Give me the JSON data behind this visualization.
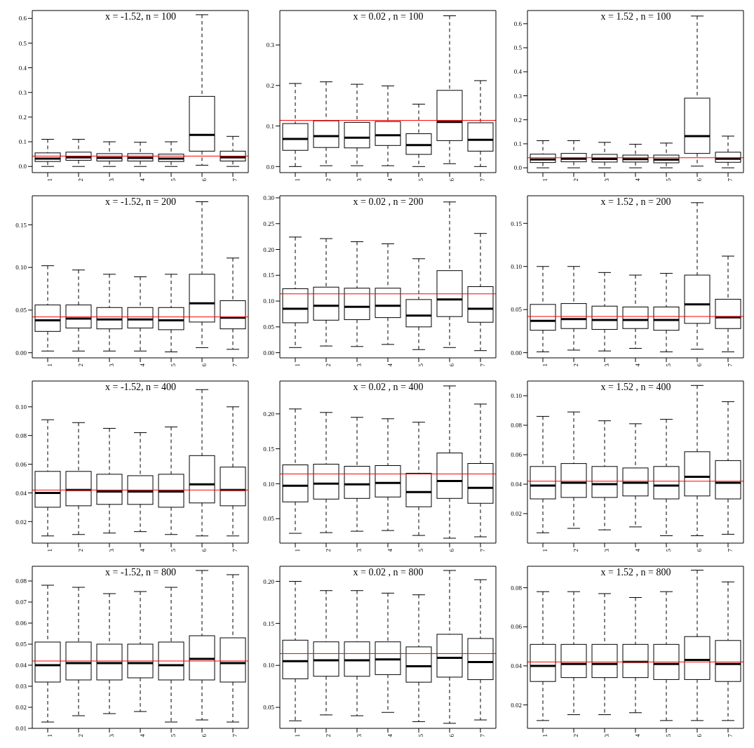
{
  "chart_data": [
    {
      "type": "box",
      "title": "x = -1.52, n = 100",
      "categories": [
        "1",
        "2",
        "3",
        "4",
        "5",
        "6",
        "7"
      ],
      "ylim": [
        -0.025,
        0.632
      ],
      "yticks": [
        {
          "value": 0,
          "label": "0.0"
        },
        {
          "value": 0.1,
          "label": "0.1"
        },
        {
          "value": 0.2,
          "label": "0.2"
        },
        {
          "value": 0.3,
          "label": "0.3"
        },
        {
          "value": 0.4,
          "label": "0.4"
        },
        {
          "value": 0.5,
          "label": "0.5"
        },
        {
          "value": 0.6,
          "label": "0.6"
        }
      ],
      "ref_lines": [
        {
          "axis": "y",
          "value": 0.042,
          "color": "#ff0000"
        }
      ],
      "boxes": [
        {
          "low": 0.0,
          "q1": 0.02,
          "median": 0.032,
          "q3": 0.055,
          "high": 0.11
        },
        {
          "low": 0.0,
          "q1": 0.025,
          "median": 0.037,
          "q3": 0.058,
          "high": 0.11
        },
        {
          "low": 0.0,
          "q1": 0.022,
          "median": 0.035,
          "q3": 0.052,
          "high": 0.1
        },
        {
          "low": 0.0,
          "q1": 0.022,
          "median": 0.035,
          "q3": 0.052,
          "high": 0.098
        },
        {
          "low": 0.0,
          "q1": 0.02,
          "median": 0.032,
          "q3": 0.05,
          "high": 0.1
        },
        {
          "low": 0.005,
          "q1": 0.062,
          "median": 0.128,
          "q3": 0.284,
          "high": 0.615
        },
        {
          "low": 0.0,
          "q1": 0.022,
          "median": 0.037,
          "q3": 0.062,
          "high": 0.122
        }
      ]
    },
    {
      "type": "box",
      "title": "x = 0.02 , n = 100",
      "categories": [
        "1",
        "2",
        "3",
        "4",
        "5",
        "6",
        "7"
      ],
      "ylim": [
        -0.015,
        0.385
      ],
      "yticks": [
        {
          "value": 0,
          "label": "0.0"
        },
        {
          "value": 0.1,
          "label": "0.1"
        },
        {
          "value": 0.2,
          "label": "0.2"
        },
        {
          "value": 0.3,
          "label": "0.3"
        }
      ],
      "ref_lines": [
        {
          "axis": "y",
          "value": 0.114,
          "color": "#ff0000"
        }
      ],
      "boxes": [
        {
          "low": 0.0,
          "q1": 0.04,
          "median": 0.068,
          "q3": 0.106,
          "high": 0.205
        },
        {
          "low": 0.002,
          "q1": 0.047,
          "median": 0.075,
          "q3": 0.113,
          "high": 0.209
        },
        {
          "low": 0.002,
          "q1": 0.046,
          "median": 0.071,
          "q3": 0.109,
          "high": 0.203
        },
        {
          "low": 0.002,
          "q1": 0.052,
          "median": 0.077,
          "q3": 0.111,
          "high": 0.199
        },
        {
          "low": 0.0,
          "q1": 0.03,
          "median": 0.053,
          "q3": 0.081,
          "high": 0.154
        },
        {
          "low": 0.007,
          "q1": 0.064,
          "median": 0.11,
          "q3": 0.188,
          "high": 0.372
        },
        {
          "low": 0.0,
          "q1": 0.038,
          "median": 0.066,
          "q3": 0.108,
          "high": 0.212
        }
      ]
    },
    {
      "type": "box",
      "title": "x = 1.52 , n = 100",
      "categories": [
        "1",
        "2",
        "3",
        "4",
        "5",
        "6",
        "7"
      ],
      "ylim": [
        -0.02,
        0.655
      ],
      "yticks": [
        {
          "value": 0,
          "label": "0.0"
        },
        {
          "value": 0.1,
          "label": "0.1"
        },
        {
          "value": 0.2,
          "label": "0.2"
        },
        {
          "value": 0.3,
          "label": "0.3"
        },
        {
          "value": 0.4,
          "label": "0.4"
        },
        {
          "value": 0.5,
          "label": "0.5"
        },
        {
          "value": 0.6,
          "label": "0.6"
        }
      ],
      "ref_lines": [
        {
          "axis": "y",
          "value": 0.042,
          "color": "#ff0000"
        }
      ],
      "boxes": [
        {
          "low": 0.0,
          "q1": 0.022,
          "median": 0.035,
          "q3": 0.057,
          "high": 0.113
        },
        {
          "low": 0.0,
          "q1": 0.025,
          "median": 0.038,
          "q3": 0.06,
          "high": 0.113
        },
        {
          "low": 0.0,
          "q1": 0.024,
          "median": 0.037,
          "q3": 0.056,
          "high": 0.106
        },
        {
          "low": 0.0,
          "q1": 0.024,
          "median": 0.036,
          "q3": 0.053,
          "high": 0.098
        },
        {
          "low": 0.0,
          "q1": 0.021,
          "median": 0.034,
          "q3": 0.053,
          "high": 0.103
        },
        {
          "low": 0.007,
          "q1": 0.06,
          "median": 0.132,
          "q3": 0.29,
          "high": 0.632
        },
        {
          "low": 0.0,
          "q1": 0.023,
          "median": 0.038,
          "q3": 0.065,
          "high": 0.132
        }
      ]
    },
    {
      "type": "box",
      "title": "x = -1.52, n = 200",
      "categories": [
        "1",
        "2",
        "3",
        "4",
        "5",
        "6",
        "7"
      ],
      "ylim": [
        -0.006,
        0.184
      ],
      "yticks": [
        {
          "value": 0,
          "label": "0.00"
        },
        {
          "value": 0.05,
          "label": "0.05"
        },
        {
          "value": 0.1,
          "label": "0.10"
        },
        {
          "value": 0.15,
          "label": "0.15"
        }
      ],
      "ref_lines": [
        {
          "axis": "y",
          "value": 0.042,
          "color": "#ff0000"
        }
      ],
      "boxes": [
        {
          "low": 0.002,
          "q1": 0.025,
          "median": 0.038,
          "q3": 0.056,
          "high": 0.102
        },
        {
          "low": 0.002,
          "q1": 0.029,
          "median": 0.04,
          "q3": 0.056,
          "high": 0.097
        },
        {
          "low": 0.002,
          "q1": 0.028,
          "median": 0.039,
          "q3": 0.053,
          "high": 0.092
        },
        {
          "low": 0.002,
          "q1": 0.029,
          "median": 0.039,
          "q3": 0.053,
          "high": 0.089
        },
        {
          "low": 0.001,
          "q1": 0.027,
          "median": 0.038,
          "q3": 0.053,
          "high": 0.092
        },
        {
          "low": 0.006,
          "q1": 0.036,
          "median": 0.058,
          "q3": 0.092,
          "high": 0.177
        },
        {
          "low": 0.004,
          "q1": 0.028,
          "median": 0.041,
          "q3": 0.061,
          "high": 0.111
        }
      ]
    },
    {
      "type": "box",
      "title": "x = 0.02 , n = 200",
      "categories": [
        "1",
        "2",
        "3",
        "4",
        "5",
        "6",
        "7"
      ],
      "ylim": [
        -0.01,
        0.304
      ],
      "yticks": [
        {
          "value": 0,
          "label": "0.00"
        },
        {
          "value": 0.05,
          "label": "0.05"
        },
        {
          "value": 0.1,
          "label": "0.10"
        },
        {
          "value": 0.15,
          "label": "0.15"
        },
        {
          "value": 0.2,
          "label": "0.20"
        },
        {
          "value": 0.25,
          "label": "0.25"
        },
        {
          "value": 0.3,
          "label": "0.30"
        }
      ],
      "ref_lines": [
        {
          "axis": "y",
          "value": 0.114,
          "color": "#ff0000"
        }
      ],
      "boxes": [
        {
          "low": 0.01,
          "q1": 0.058,
          "median": 0.085,
          "q3": 0.124,
          "high": 0.224
        },
        {
          "low": 0.013,
          "q1": 0.063,
          "median": 0.091,
          "q3": 0.127,
          "high": 0.221
        },
        {
          "low": 0.012,
          "q1": 0.064,
          "median": 0.089,
          "q3": 0.125,
          "high": 0.215
        },
        {
          "low": 0.016,
          "q1": 0.068,
          "median": 0.091,
          "q3": 0.125,
          "high": 0.211
        },
        {
          "low": 0.006,
          "q1": 0.05,
          "median": 0.072,
          "q3": 0.103,
          "high": 0.182
        },
        {
          "low": 0.01,
          "q1": 0.07,
          "median": 0.103,
          "q3": 0.159,
          "high": 0.292
        },
        {
          "low": 0.004,
          "q1": 0.059,
          "median": 0.085,
          "q3": 0.128,
          "high": 0.231
        }
      ]
    },
    {
      "type": "box",
      "title": "x = 1.52 , n = 200",
      "categories": [
        "1",
        "2",
        "3",
        "4",
        "5",
        "6",
        "7"
      ],
      "ylim": [
        -0.006,
        0.182
      ],
      "yticks": [
        {
          "value": 0,
          "label": "0.00"
        },
        {
          "value": 0.05,
          "label": "0.05"
        },
        {
          "value": 0.1,
          "label": "0.10"
        },
        {
          "value": 0.15,
          "label": "0.15"
        }
      ],
      "ref_lines": [
        {
          "axis": "y",
          "value": 0.042,
          "color": "#ff0000"
        }
      ],
      "boxes": [
        {
          "low": 0.001,
          "q1": 0.026,
          "median": 0.037,
          "q3": 0.056,
          "high": 0.1
        },
        {
          "low": 0.003,
          "q1": 0.028,
          "median": 0.039,
          "q3": 0.057,
          "high": 0.1
        },
        {
          "low": 0.002,
          "q1": 0.027,
          "median": 0.038,
          "q3": 0.054,
          "high": 0.093
        },
        {
          "low": 0.005,
          "q1": 0.028,
          "median": 0.038,
          "q3": 0.053,
          "high": 0.09
        },
        {
          "low": 0.001,
          "q1": 0.026,
          "median": 0.038,
          "q3": 0.053,
          "high": 0.092
        },
        {
          "low": 0.004,
          "q1": 0.034,
          "median": 0.056,
          "q3": 0.09,
          "high": 0.174
        },
        {
          "low": 0.001,
          "q1": 0.028,
          "median": 0.041,
          "q3": 0.062,
          "high": 0.112
        }
      ]
    },
    {
      "type": "box",
      "title": "x = -1.52, n = 400",
      "categories": [
        "1",
        "2",
        "3",
        "4",
        "5",
        "6",
        "7"
      ],
      "ylim": [
        0.005,
        0.118
      ],
      "yticks": [
        {
          "value": 0.02,
          "label": "0.02"
        },
        {
          "value": 0.04,
          "label": "0.04"
        },
        {
          "value": 0.06,
          "label": "0.06"
        },
        {
          "value": 0.08,
          "label": "0.08"
        },
        {
          "value": 0.1,
          "label": "0.10"
        }
      ],
      "ref_lines": [
        {
          "axis": "y",
          "value": 0.042,
          "color": "#ff0000"
        }
      ],
      "boxes": [
        {
          "low": 0.01,
          "q1": 0.03,
          "median": 0.04,
          "q3": 0.055,
          "high": 0.091
        },
        {
          "low": 0.011,
          "q1": 0.031,
          "median": 0.042,
          "q3": 0.055,
          "high": 0.089
        },
        {
          "low": 0.012,
          "q1": 0.032,
          "median": 0.041,
          "q3": 0.053,
          "high": 0.085
        },
        {
          "low": 0.013,
          "q1": 0.032,
          "median": 0.041,
          "q3": 0.052,
          "high": 0.082
        },
        {
          "low": 0.011,
          "q1": 0.03,
          "median": 0.041,
          "q3": 0.053,
          "high": 0.086
        },
        {
          "low": 0.01,
          "q1": 0.033,
          "median": 0.046,
          "q3": 0.066,
          "high": 0.112
        },
        {
          "low": 0.01,
          "q1": 0.031,
          "median": 0.042,
          "q3": 0.058,
          "high": 0.1
        }
      ]
    },
    {
      "type": "box",
      "title": "x = 0.02 , n = 400",
      "categories": [
        "1",
        "2",
        "3",
        "4",
        "5",
        "6",
        "7"
      ],
      "ylim": [
        0.015,
        0.247
      ],
      "yticks": [
        {
          "value": 0.05,
          "label": "0.05"
        },
        {
          "value": 0.1,
          "label": "0.10"
        },
        {
          "value": 0.15,
          "label": "0.15"
        },
        {
          "value": 0.2,
          "label": "0.20"
        }
      ],
      "ref_lines": [
        {
          "axis": "y",
          "value": 0.114,
          "color": "#ff0000"
        }
      ],
      "boxes": [
        {
          "low": 0.029,
          "q1": 0.074,
          "median": 0.097,
          "q3": 0.127,
          "high": 0.207
        },
        {
          "low": 0.03,
          "q1": 0.078,
          "median": 0.1,
          "q3": 0.128,
          "high": 0.202
        },
        {
          "low": 0.032,
          "q1": 0.079,
          "median": 0.099,
          "q3": 0.125,
          "high": 0.195
        },
        {
          "low": 0.033,
          "q1": 0.081,
          "median": 0.101,
          "q3": 0.126,
          "high": 0.193
        },
        {
          "low": 0.026,
          "q1": 0.067,
          "median": 0.088,
          "q3": 0.115,
          "high": 0.188
        },
        {
          "low": 0.022,
          "q1": 0.079,
          "median": 0.104,
          "q3": 0.144,
          "high": 0.24
        },
        {
          "low": 0.024,
          "q1": 0.072,
          "median": 0.094,
          "q3": 0.129,
          "high": 0.214
        }
      ]
    },
    {
      "type": "box",
      "title": "x = 1.52 , n = 400",
      "categories": [
        "1",
        "2",
        "3",
        "4",
        "5",
        "6",
        "7"
      ],
      "ylim": [
        0.0,
        0.11
      ],
      "yticks": [
        {
          "value": 0.02,
          "label": "0.02"
        },
        {
          "value": 0.04,
          "label": "0.04"
        },
        {
          "value": 0.06,
          "label": "0.06"
        },
        {
          "value": 0.08,
          "label": "0.08"
        },
        {
          "value": 0.1,
          "label": "0.10"
        }
      ],
      "ref_lines": [
        {
          "axis": "y",
          "value": 0.042,
          "color": "#ff0000"
        }
      ],
      "boxes": [
        {
          "low": 0.007,
          "q1": 0.03,
          "median": 0.039,
          "q3": 0.052,
          "high": 0.086
        },
        {
          "low": 0.01,
          "q1": 0.031,
          "median": 0.041,
          "q3": 0.054,
          "high": 0.089
        },
        {
          "low": 0.009,
          "q1": 0.031,
          "median": 0.04,
          "q3": 0.052,
          "high": 0.083
        },
        {
          "low": 0.011,
          "q1": 0.032,
          "median": 0.041,
          "q3": 0.051,
          "high": 0.081
        },
        {
          "low": 0.005,
          "q1": 0.03,
          "median": 0.039,
          "q3": 0.052,
          "high": 0.084
        },
        {
          "low": 0.005,
          "q1": 0.032,
          "median": 0.045,
          "q3": 0.062,
          "high": 0.107
        },
        {
          "low": 0.006,
          "q1": 0.03,
          "median": 0.041,
          "q3": 0.056,
          "high": 0.096
        }
      ]
    },
    {
      "type": "box",
      "title": "x = -1.52, n = 800",
      "categories": [
        "1",
        "2",
        "3",
        "4",
        "5",
        "6",
        "7"
      ],
      "ylim": [
        0.01,
        0.087
      ],
      "yticks": [
        {
          "value": 0.01,
          "label": "0.01"
        },
        {
          "value": 0.02,
          "label": "0.02"
        },
        {
          "value": 0.03,
          "label": "0.03"
        },
        {
          "value": 0.04,
          "label": "0.04"
        },
        {
          "value": 0.05,
          "label": "0.05"
        },
        {
          "value": 0.06,
          "label": "0.06"
        },
        {
          "value": 0.07,
          "label": "0.07"
        },
        {
          "value": 0.08,
          "label": "0.08"
        }
      ],
      "ref_lines": [
        {
          "axis": "y",
          "value": 0.042,
          "color": "#ff0000"
        }
      ],
      "boxes": [
        {
          "low": 0.013,
          "q1": 0.032,
          "median": 0.04,
          "q3": 0.051,
          "high": 0.078
        },
        {
          "low": 0.016,
          "q1": 0.033,
          "median": 0.041,
          "q3": 0.051,
          "high": 0.077
        },
        {
          "low": 0.017,
          "q1": 0.033,
          "median": 0.041,
          "q3": 0.05,
          "high": 0.074
        },
        {
          "low": 0.018,
          "q1": 0.034,
          "median": 0.041,
          "q3": 0.05,
          "high": 0.075
        },
        {
          "low": 0.013,
          "q1": 0.033,
          "median": 0.04,
          "q3": 0.051,
          "high": 0.077
        },
        {
          "low": 0.014,
          "q1": 0.033,
          "median": 0.043,
          "q3": 0.054,
          "high": 0.085
        },
        {
          "low": 0.013,
          "q1": 0.032,
          "median": 0.041,
          "q3": 0.053,
          "high": 0.083
        }
      ]
    },
    {
      "type": "box",
      "title": "x = 0.02 , n = 800",
      "categories": [
        "1",
        "2",
        "3",
        "4",
        "5",
        "6",
        "7"
      ],
      "ylim": [
        0.025,
        0.218
      ],
      "yticks": [
        {
          "value": 0.05,
          "label": "0.05"
        },
        {
          "value": 0.1,
          "label": "0.10"
        },
        {
          "value": 0.15,
          "label": "0.15"
        },
        {
          "value": 0.2,
          "label": "0.20"
        }
      ],
      "ref_lines": [
        {
          "axis": "y",
          "value": 0.114,
          "color": "#ff0000"
        }
      ],
      "boxes": [
        {
          "low": 0.034,
          "q1": 0.084,
          "median": 0.105,
          "q3": 0.13,
          "high": 0.2
        },
        {
          "low": 0.041,
          "q1": 0.087,
          "median": 0.106,
          "q3": 0.128,
          "high": 0.189
        },
        {
          "low": 0.04,
          "q1": 0.087,
          "median": 0.106,
          "q3": 0.128,
          "high": 0.189
        },
        {
          "low": 0.044,
          "q1": 0.089,
          "median": 0.107,
          "q3": 0.128,
          "high": 0.186
        },
        {
          "low": 0.033,
          "q1": 0.08,
          "median": 0.099,
          "q3": 0.122,
          "high": 0.184
        },
        {
          "low": 0.031,
          "q1": 0.086,
          "median": 0.109,
          "q3": 0.137,
          "high": 0.213
        },
        {
          "low": 0.035,
          "q1": 0.083,
          "median": 0.104,
          "q3": 0.132,
          "high": 0.202
        }
      ]
    },
    {
      "type": "box",
      "title": "x = 1.52 , n = 800",
      "categories": [
        "1",
        "2",
        "3",
        "4",
        "5",
        "6",
        "7"
      ],
      "ylim": [
        0.008,
        0.091
      ],
      "yticks": [
        {
          "value": 0.02,
          "label": "0.02"
        },
        {
          "value": 0.04,
          "label": "0.04"
        },
        {
          "value": 0.06,
          "label": "0.06"
        },
        {
          "value": 0.08,
          "label": "0.08"
        }
      ],
      "ref_lines": [
        {
          "axis": "y",
          "value": 0.042,
          "color": "#ff0000"
        }
      ],
      "boxes": [
        {
          "low": 0.012,
          "q1": 0.032,
          "median": 0.04,
          "q3": 0.051,
          "high": 0.078
        },
        {
          "low": 0.015,
          "q1": 0.034,
          "median": 0.041,
          "q3": 0.051,
          "high": 0.078
        },
        {
          "low": 0.015,
          "q1": 0.034,
          "median": 0.041,
          "q3": 0.051,
          "high": 0.077
        },
        {
          "low": 0.016,
          "q1": 0.034,
          "median": 0.042,
          "q3": 0.051,
          "high": 0.075
        },
        {
          "low": 0.012,
          "q1": 0.033,
          "median": 0.041,
          "q3": 0.051,
          "high": 0.078
        },
        {
          "low": 0.012,
          "q1": 0.033,
          "median": 0.043,
          "q3": 0.055,
          "high": 0.089
        },
        {
          "low": 0.012,
          "q1": 0.032,
          "median": 0.041,
          "q3": 0.053,
          "high": 0.083
        }
      ]
    }
  ]
}
